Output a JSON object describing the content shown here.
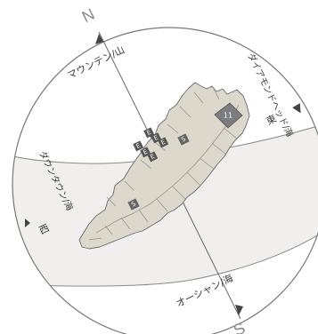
{
  "compass": {
    "north": "N",
    "south": "S"
  },
  "directions": {
    "north_label": "マウンテン/山",
    "east_label": "ダイアモンドヘッド/海",
    "east_kanji": "東",
    "west_label": "ダウンタウン/海",
    "west_kanji": "西",
    "south_label": "オーシャン/海"
  },
  "markers": {
    "unit_number": "11",
    "elevator_letter": "E",
    "stair_letter": "S"
  },
  "colors": {
    "building_fill": "#ddd8cc",
    "building_stroke": "#6a6a6a",
    "highlight_unit": "#7c7c7c",
    "badge_fill": "#555555",
    "band_fill": "#f1efed",
    "circle_stroke": "#777777"
  }
}
